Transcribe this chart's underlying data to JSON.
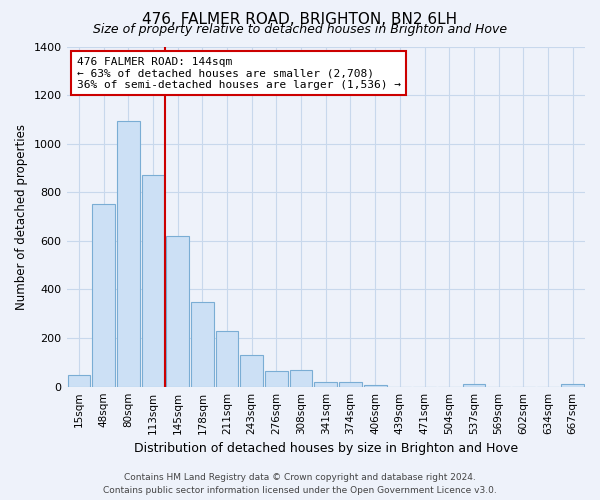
{
  "title": "476, FALMER ROAD, BRIGHTON, BN2 6LH",
  "subtitle": "Size of property relative to detached houses in Brighton and Hove",
  "xlabel": "Distribution of detached houses by size in Brighton and Hove",
  "ylabel": "Number of detached properties",
  "bar_labels": [
    "15sqm",
    "48sqm",
    "80sqm",
    "113sqm",
    "145sqm",
    "178sqm",
    "211sqm",
    "243sqm",
    "276sqm",
    "308sqm",
    "341sqm",
    "374sqm",
    "406sqm",
    "439sqm",
    "471sqm",
    "504sqm",
    "537sqm",
    "569sqm",
    "602sqm",
    "634sqm",
    "667sqm"
  ],
  "bar_values": [
    50,
    750,
    1095,
    870,
    620,
    348,
    228,
    130,
    65,
    70,
    20,
    20,
    5,
    0,
    0,
    0,
    10,
    0,
    0,
    0,
    10
  ],
  "bar_color": "#cce0f5",
  "bar_edge_color": "#7aadd4",
  "vline_color": "#cc0000",
  "annotation_title": "476 FALMER ROAD: 144sqm",
  "annotation_line1": "← 63% of detached houses are smaller (2,708)",
  "annotation_line2": "36% of semi-detached houses are larger (1,536) →",
  "annotation_box_color": "#ffffff",
  "annotation_box_edge": "#cc0000",
  "ylim": [
    0,
    1400
  ],
  "yticks": [
    0,
    200,
    400,
    600,
    800,
    1000,
    1200,
    1400
  ],
  "footer_line1": "Contains HM Land Registry data © Crown copyright and database right 2024.",
  "footer_line2": "Contains public sector information licensed under the Open Government Licence v3.0.",
  "bg_color": "#eef2fa",
  "grid_color": "#c8d8ec",
  "title_fontsize": 11,
  "subtitle_fontsize": 9
}
